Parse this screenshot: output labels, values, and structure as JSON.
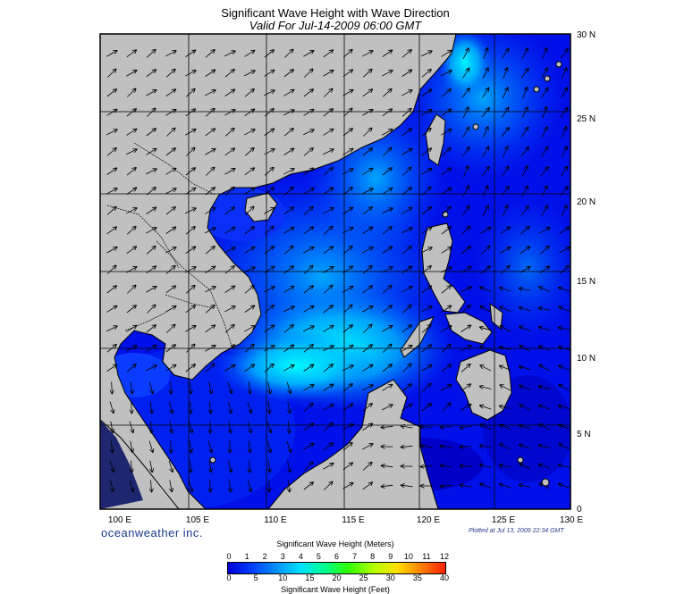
{
  "header": {
    "title": "Significant Wave Height with Wave Direction",
    "subtitle": "Valid For Jul-14-2009 06:00 GMT"
  },
  "map": {
    "lon_labels": [
      "100 E",
      "105 E",
      "110 E",
      "115 E",
      "120 E",
      "125 E",
      "130 E"
    ],
    "lat_labels": [
      "30 N",
      "25 N",
      "20 N",
      "15 N",
      "10 N",
      "5 N",
      "0"
    ],
    "lon_range": [
      100,
      130
    ],
    "lat_range": [
      0,
      30
    ],
    "land_color": "#c0c0c0",
    "water_base_color": "#0000ee",
    "high_wave_color": "#00ffff",
    "arrow_color": "#000000",
    "gridlines": true
  },
  "footer": {
    "brand": "oceanweather inc.",
    "plotted": "Plotted at Jul 13, 2009 22:34 GMT"
  },
  "colorbar": {
    "title_top": "Significant Wave Height (Meters)",
    "title_bottom": "Significant Wave Height (Feet)",
    "meters_ticks": [
      "0",
      "1",
      "2",
      "3",
      "4",
      "5",
      "6",
      "7",
      "8",
      "9",
      "10",
      "11",
      "12"
    ],
    "feet_ticks": [
      "0",
      "5",
      "10",
      "15",
      "20",
      "25",
      "30",
      "35",
      "40"
    ],
    "colors": [
      "#0000d8",
      "#0040ff",
      "#0090ff",
      "#00e0ff",
      "#00ff90",
      "#30ff00",
      "#b0ff00",
      "#ffe000",
      "#ff8000",
      "#ff2000"
    ]
  }
}
